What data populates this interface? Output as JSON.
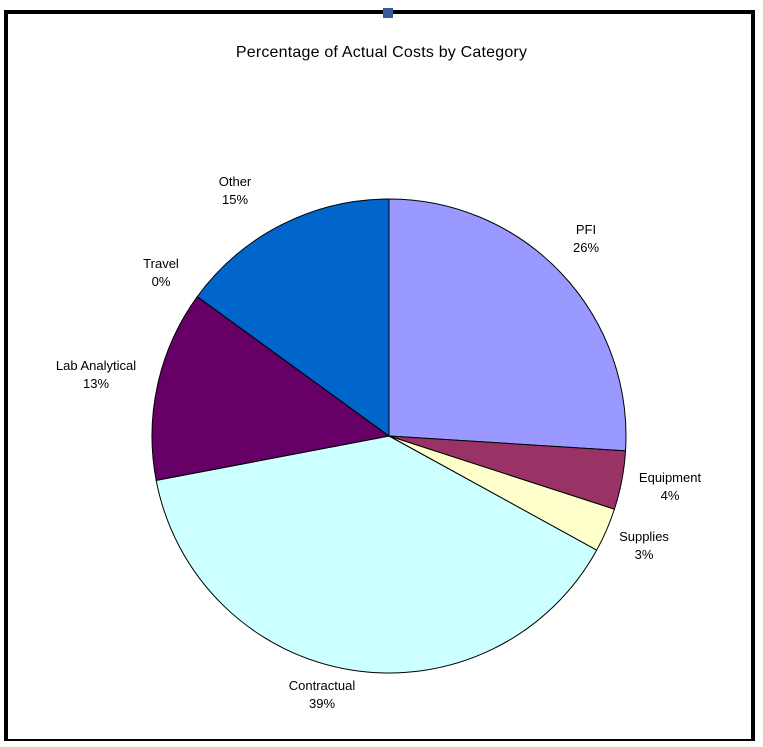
{
  "chart_data": {
    "type": "pie",
    "title": "Percentage of Actual Costs by Category",
    "slices": [
      {
        "label": "PFI",
        "value": 26,
        "percent_label": "26%",
        "color": "#9999FF"
      },
      {
        "label": "Equipment",
        "value": 4,
        "percent_label": "4%",
        "color": "#993366"
      },
      {
        "label": "Supplies",
        "value": 3,
        "percent_label": "3%",
        "color": "#FFFFCC"
      },
      {
        "label": "Contractual",
        "value": 39,
        "percent_label": "39%",
        "color": "#CCFFFF"
      },
      {
        "label": "Lab Analytical",
        "value": 13,
        "percent_label": "13%",
        "color": "#660066"
      },
      {
        "label": "Travel",
        "value": 0,
        "percent_label": "0%",
        "color": "#FF8080"
      },
      {
        "label": "Other",
        "value": 15,
        "percent_label": "15%",
        "color": "#0066CC"
      }
    ]
  }
}
